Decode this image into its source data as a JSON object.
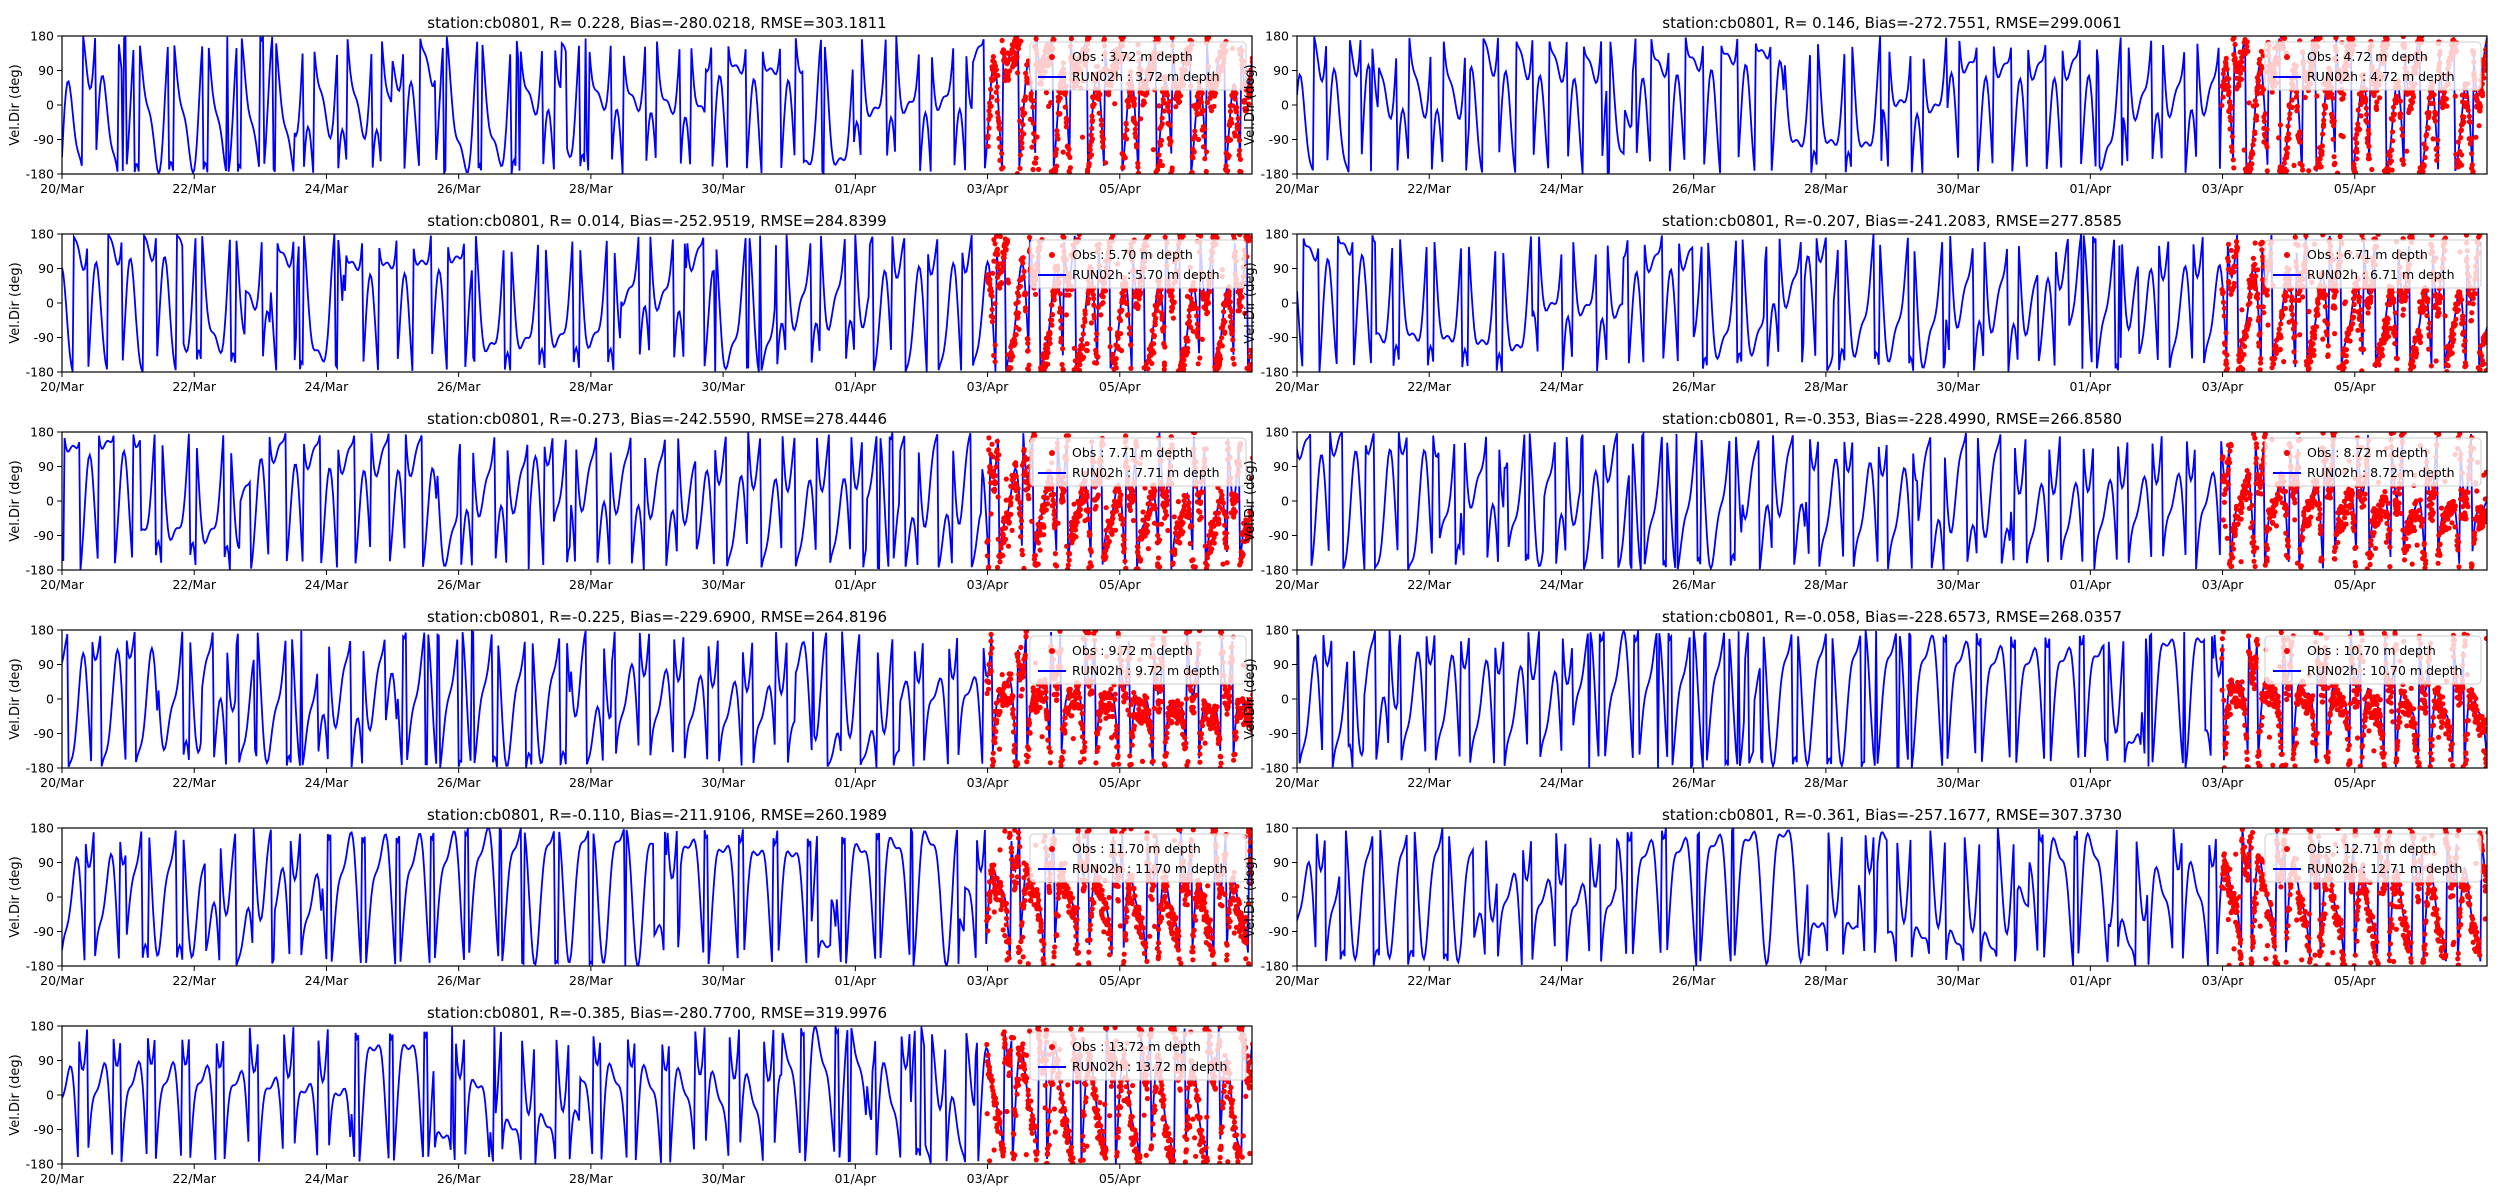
{
  "figure": {
    "ylabel": "Vel.Dir (deg)",
    "y_ticks": [
      180,
      90,
      0,
      -90,
      -180
    ],
    "x_tick_labels": [
      "20/Mar",
      "22/Mar",
      "24/Mar",
      "26/Mar",
      "28/Mar",
      "30/Mar",
      "01/Apr",
      "03/Apr",
      "05/Apr"
    ],
    "colors": {
      "obs": "#ff0000",
      "model": "#0000ff",
      "axes": "#000000"
    }
  },
  "chart_data": [
    {
      "type": "line",
      "title": "station:cb0801, R= 0.228, Bias=-280.0218, RMSE=303.1811",
      "x_range_days": [
        0,
        18.0
      ],
      "ylim": [
        -180,
        180
      ],
      "series": [
        {
          "name": "Obs : 3.72 m depth",
          "style": "points",
          "x_start_day": 14.0
        },
        {
          "name": "RUN02h : 3.72 m depth",
          "style": "line"
        }
      ],
      "legend": "upper right"
    },
    {
      "type": "line",
      "title": "station:cb0801, R= 0.146, Bias=-272.7551, RMSE=299.0061",
      "x_range_days": [
        0,
        18.0
      ],
      "ylim": [
        -180,
        180
      ],
      "series": [
        {
          "name": "Obs : 4.72 m depth",
          "style": "points",
          "x_start_day": 14.0
        },
        {
          "name": "RUN02h : 4.72 m depth",
          "style": "line"
        }
      ],
      "legend": "upper right"
    },
    {
      "type": "line",
      "title": "station:cb0801, R= 0.014, Bias=-252.9519, RMSE=284.8399",
      "x_range_days": [
        0,
        18.0
      ],
      "ylim": [
        -180,
        180
      ],
      "series": [
        {
          "name": "Obs : 5.70 m depth",
          "style": "points",
          "x_start_day": 14.0
        },
        {
          "name": "RUN02h : 5.70 m depth",
          "style": "line"
        }
      ],
      "legend": "upper right"
    },
    {
      "type": "line",
      "title": "station:cb0801, R=-0.207, Bias=-241.2083, RMSE=277.8585",
      "x_range_days": [
        0,
        18.0
      ],
      "ylim": [
        -180,
        180
      ],
      "series": [
        {
          "name": "Obs : 6.71 m depth",
          "style": "points",
          "x_start_day": 14.0
        },
        {
          "name": "RUN02h : 6.71 m depth",
          "style": "line"
        }
      ],
      "legend": "upper right"
    },
    {
      "type": "line",
      "title": "station:cb0801, R=-0.273, Bias=-242.5590, RMSE=278.4446",
      "x_range_days": [
        0,
        18.0
      ],
      "ylim": [
        -180,
        180
      ],
      "series": [
        {
          "name": "Obs : 7.71 m depth",
          "style": "points",
          "x_start_day": 14.0
        },
        {
          "name": "RUN02h : 7.71 m depth",
          "style": "line"
        }
      ],
      "legend": "upper right"
    },
    {
      "type": "line",
      "title": "station:cb0801, R=-0.353, Bias=-228.4990, RMSE=266.8580",
      "x_range_days": [
        0,
        18.0
      ],
      "ylim": [
        -180,
        180
      ],
      "series": [
        {
          "name": "Obs : 8.72 m depth",
          "style": "points",
          "x_start_day": 14.0
        },
        {
          "name": "RUN02h : 8.72 m depth",
          "style": "line"
        }
      ],
      "legend": "upper right"
    },
    {
      "type": "line",
      "title": "station:cb0801, R=-0.225, Bias=-229.6900, RMSE=264.8196",
      "x_range_days": [
        0,
        18.0
      ],
      "ylim": [
        -180,
        180
      ],
      "series": [
        {
          "name": "Obs : 9.72 m depth",
          "style": "points",
          "x_start_day": 14.0
        },
        {
          "name": "RUN02h : 9.72 m depth",
          "style": "line"
        }
      ],
      "legend": "upper right"
    },
    {
      "type": "line",
      "title": "station:cb0801, R=-0.058, Bias=-228.6573, RMSE=268.0357",
      "x_range_days": [
        0,
        18.0
      ],
      "ylim": [
        -180,
        180
      ],
      "series": [
        {
          "name": "Obs : 10.70 m depth",
          "style": "points",
          "x_start_day": 14.0
        },
        {
          "name": "RUN02h : 10.70 m depth",
          "style": "line"
        }
      ],
      "legend": "upper right"
    },
    {
      "type": "line",
      "title": "station:cb0801, R=-0.110, Bias=-211.9106, RMSE=260.1989",
      "x_range_days": [
        0,
        18.0
      ],
      "ylim": [
        -180,
        180
      ],
      "series": [
        {
          "name": "Obs : 11.70 m depth",
          "style": "points",
          "x_start_day": 14.0
        },
        {
          "name": "RUN02h : 11.70 m depth",
          "style": "line"
        }
      ],
      "legend": "upper right"
    },
    {
      "type": "line",
      "title": "station:cb0801, R=-0.361, Bias=-257.1677, RMSE=307.3730",
      "x_range_days": [
        0,
        18.0
      ],
      "ylim": [
        -180,
        180
      ],
      "series": [
        {
          "name": "Obs : 12.71 m depth",
          "style": "points",
          "x_start_day": 14.0
        },
        {
          "name": "RUN02h : 12.71 m depth",
          "style": "line"
        }
      ],
      "legend": "upper right"
    },
    {
      "type": "line",
      "title": "station:cb0801, R=-0.385, Bias=-280.7700, RMSE=319.9976",
      "x_range_days": [
        0,
        18.0
      ],
      "ylim": [
        -180,
        180
      ],
      "series": [
        {
          "name": "Obs : 13.72 m depth",
          "style": "points",
          "x_start_day": 14.0
        },
        {
          "name": "RUN02h : 13.72 m depth",
          "style": "line"
        }
      ],
      "legend": "upper right"
    }
  ]
}
